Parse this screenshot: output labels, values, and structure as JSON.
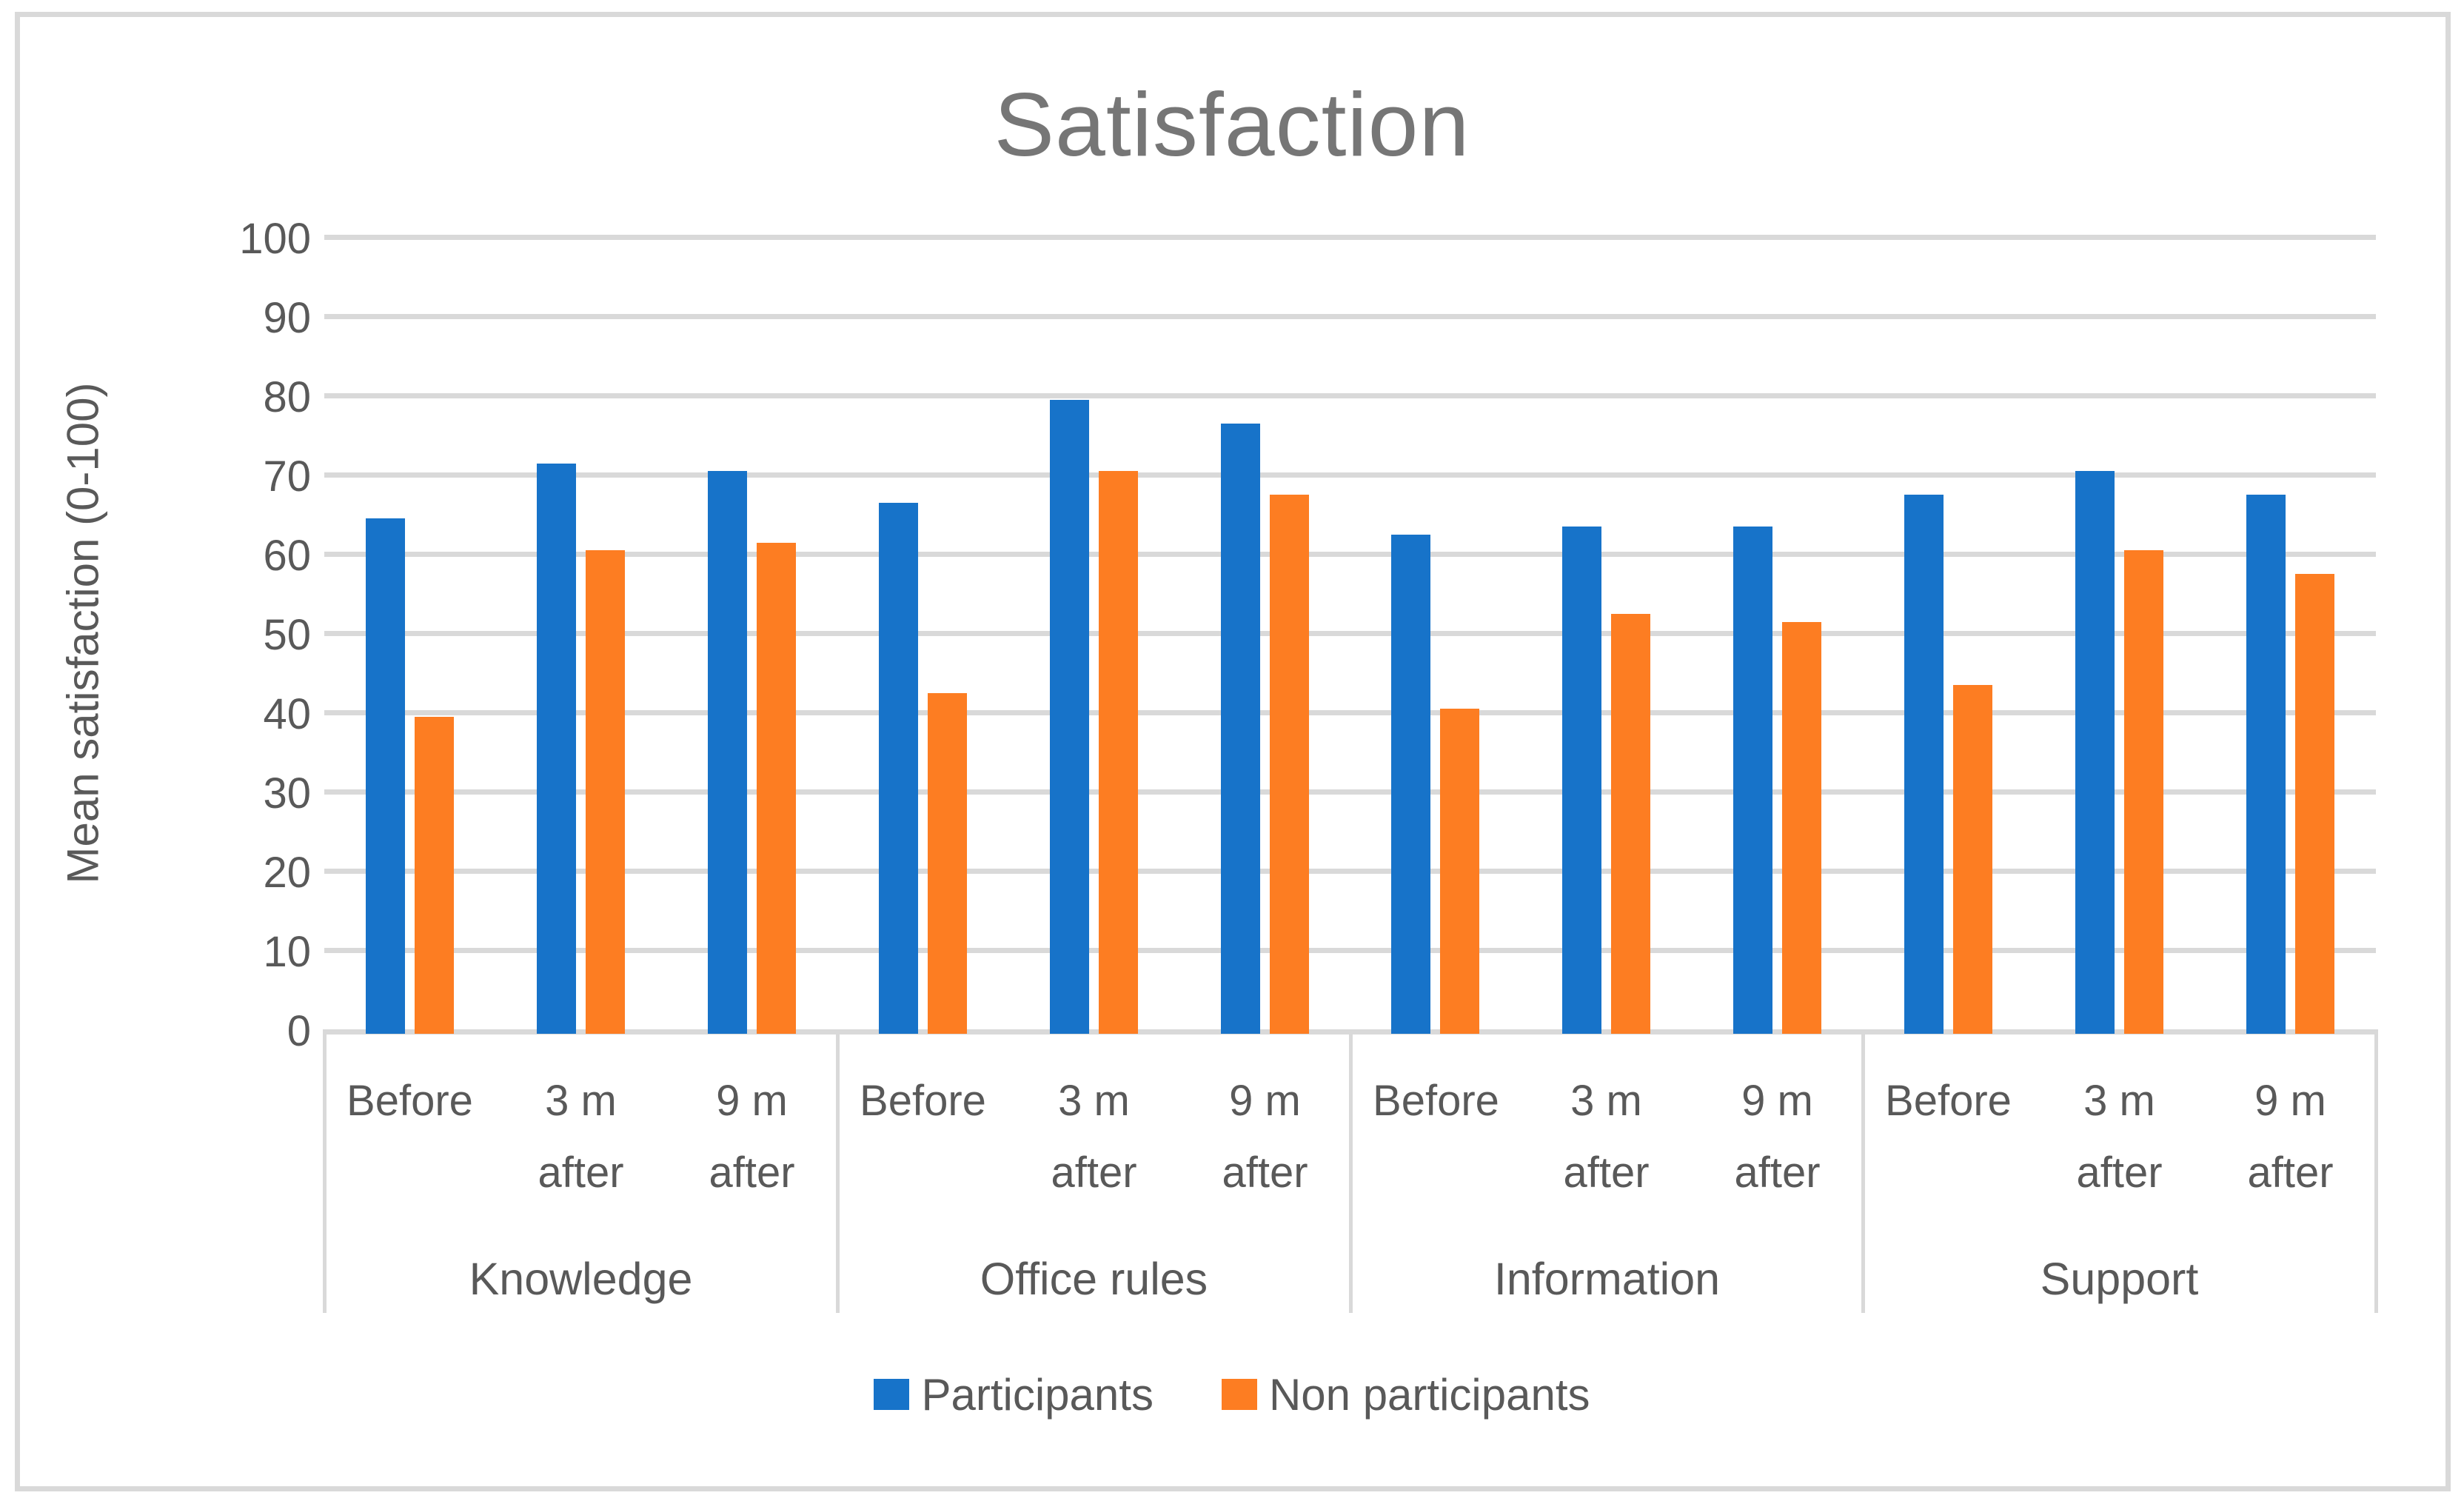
{
  "title": "Satisfaction",
  "y_axis_title": "Mean satisfaction (0-100)",
  "chart_data": {
    "type": "bar",
    "title": "Satisfaction",
    "xlabel": "",
    "ylabel": "Mean satisfaction (0-100)",
    "ylim": [
      0,
      100
    ],
    "y_tick_step": 10,
    "grid": true,
    "legend_position": "bottom",
    "groups": [
      "Knowledge",
      "Office rules",
      "Information",
      "Support"
    ],
    "categories": [
      "Before",
      "3 m\nafter",
      "9 m\nafter"
    ],
    "series": [
      {
        "name": "Participants",
        "color": "#1773C9",
        "values": [
          [
            65,
            72,
            71
          ],
          [
            67,
            80,
            77
          ],
          [
            63,
            64,
            64
          ],
          [
            68,
            71,
            68
          ]
        ]
      },
      {
        "name": "Non participants",
        "color": "#FD7D22",
        "values": [
          [
            40,
            61,
            62
          ],
          [
            43,
            71,
            68
          ],
          [
            41,
            53,
            52
          ],
          [
            44,
            61,
            58
          ]
        ]
      }
    ],
    "colors": {
      "gridline": "#D9D9D9",
      "border": "#D9D9D9",
      "axis_text": "#595959",
      "title_text": "#767676"
    }
  }
}
